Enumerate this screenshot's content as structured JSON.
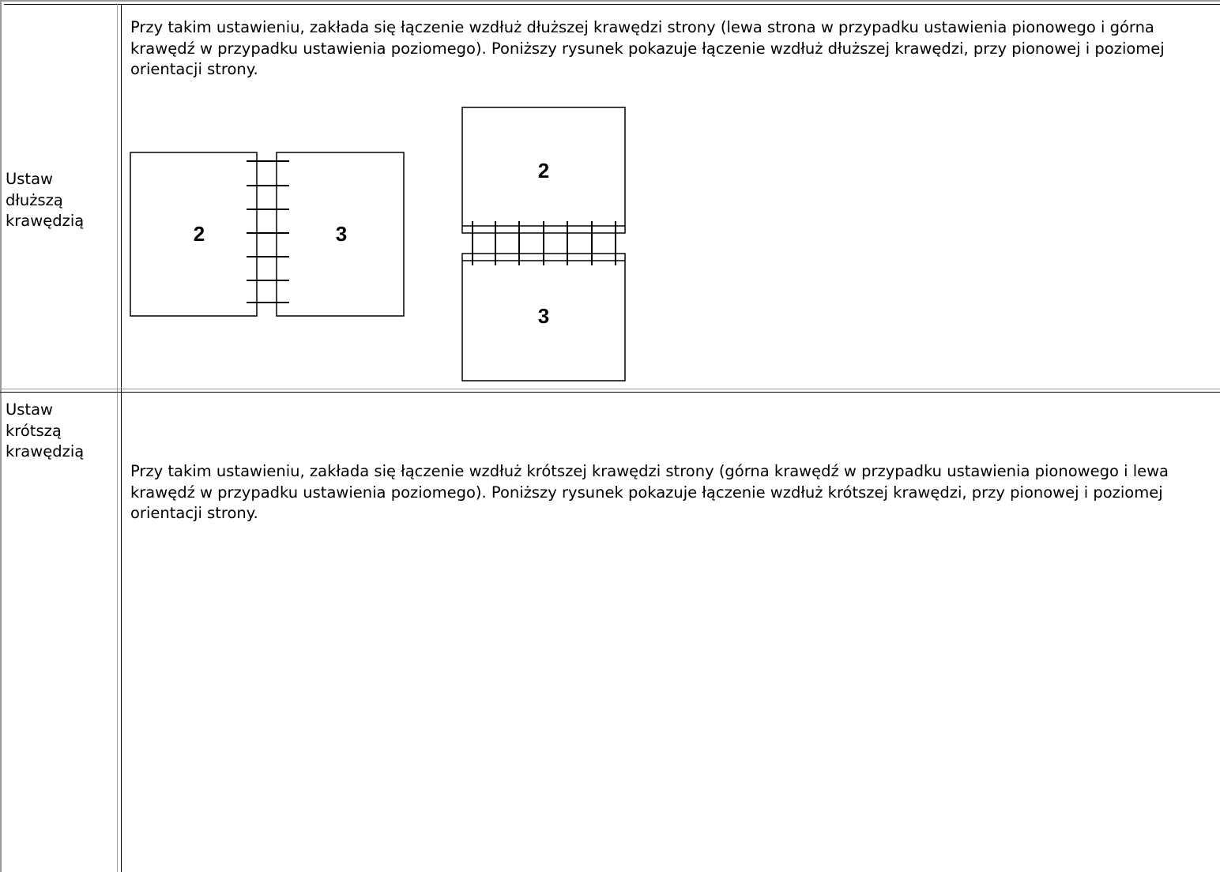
{
  "table": {
    "rows": [
      {
        "label": "Ustaw dłuższą krawędzią",
        "text": "Przy takim ustawieniu, zakłada się łączenie wzdłuż dłuższej krawędzi strony (lewa strona w przypadku ustawienia pionowego i górna krawędź w przypadku ustawienia poziomego). Poniższy rysunek pokazuje łączenie wzdłuż dłuższej krawędzi, przy pionowej i poziomej orientacji strony.",
        "figure_pages": [
          "2",
          "3",
          "2",
          "3"
        ]
      },
      {
        "label": "Ustaw krótszą krawędzią",
        "text": "Przy takim ustawieniu, zakłada się łączenie wzdłuż krótszej krawędzi strony (górna krawędź w przypadku ustawienia pionowego i lewa krawędź w przypadku ustawienia poziomego). Poniższy rysunek pokazuje łączenie wzdłuż krótszej krawędzi, przy pionowej i poziomej orientacji strony."
      }
    ]
  }
}
